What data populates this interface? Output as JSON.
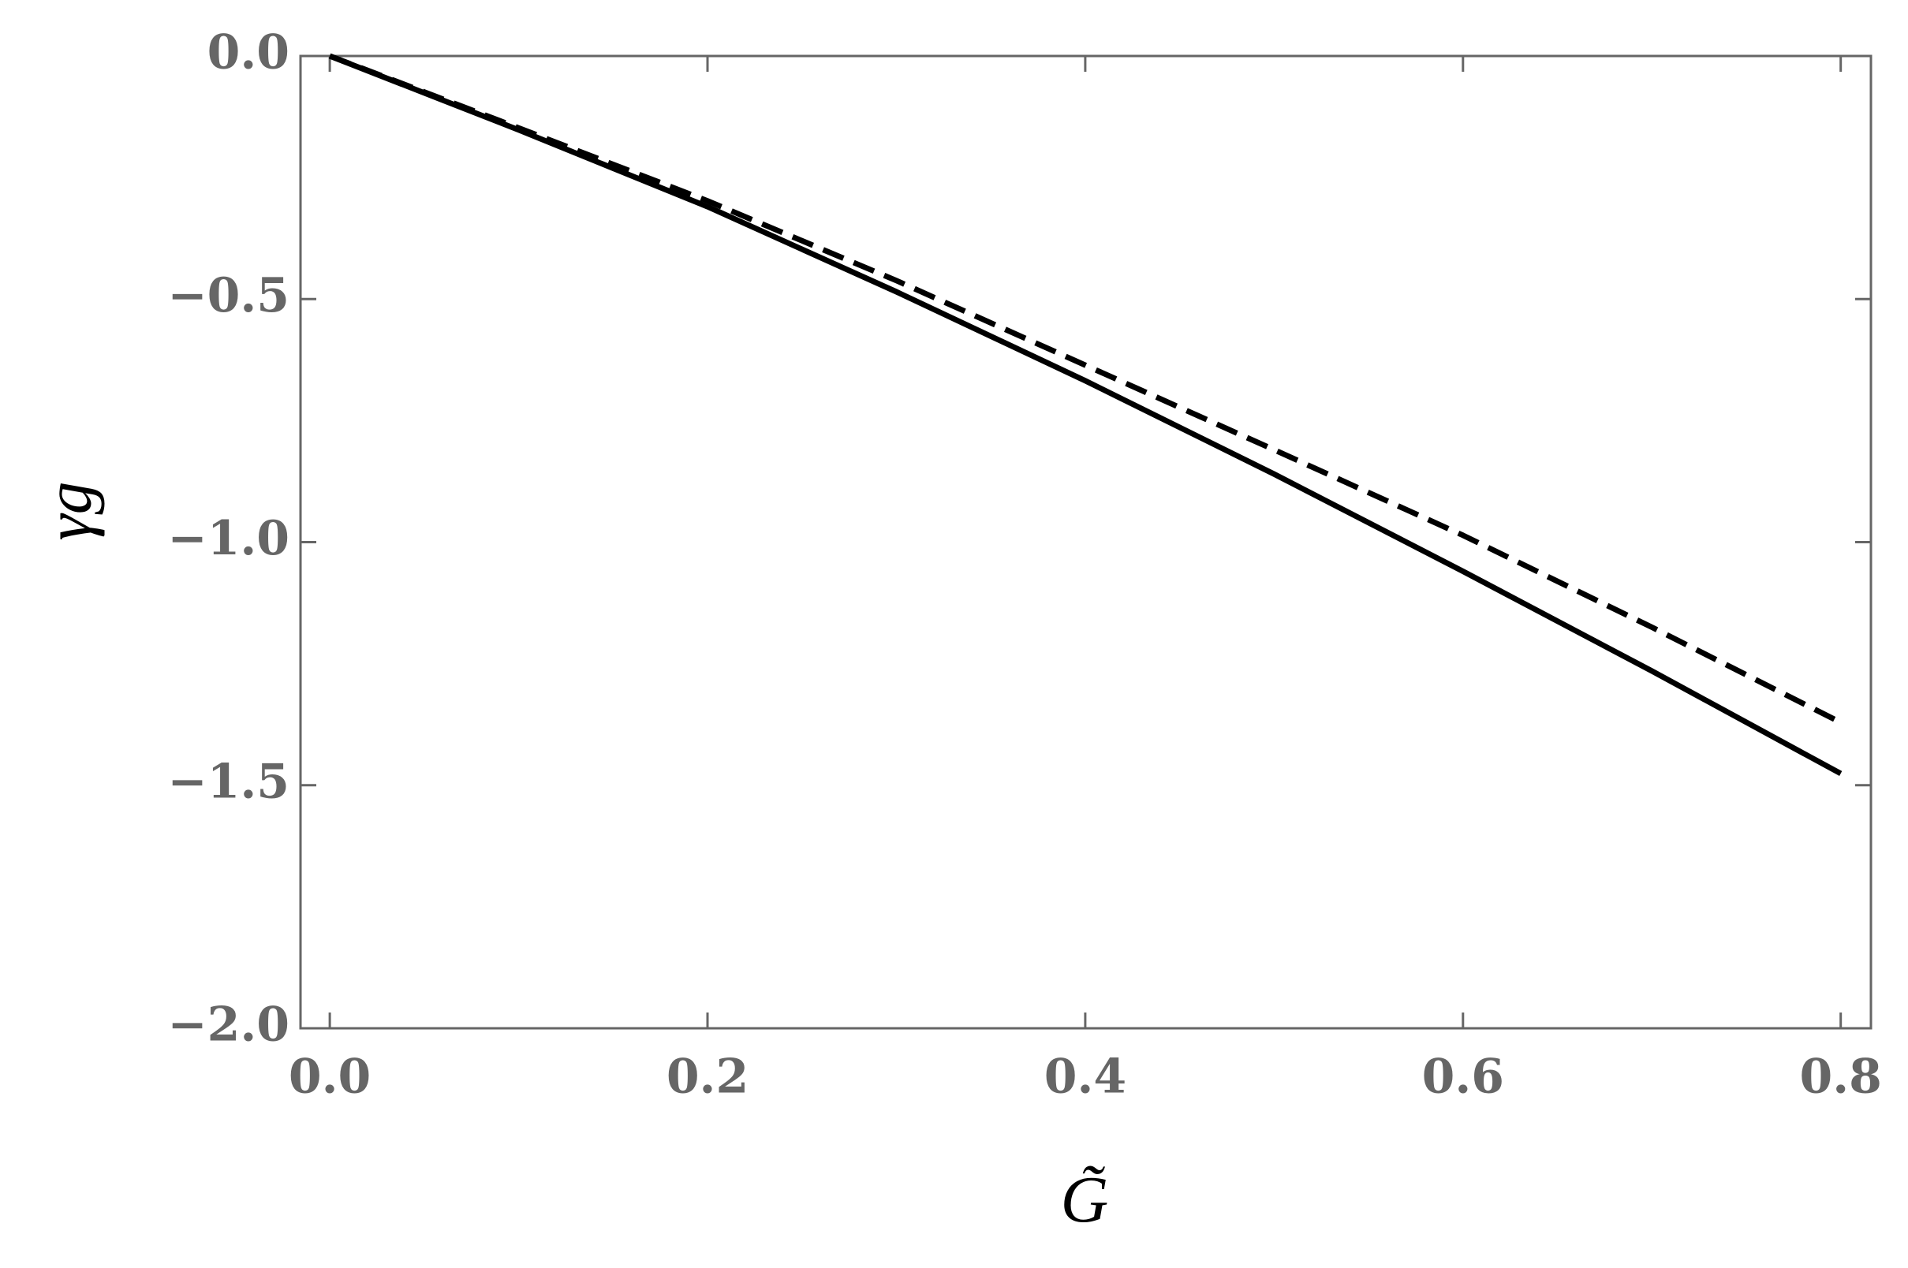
{
  "chart_data": {
    "type": "line",
    "x_label": "G̃",
    "y_label": "γg",
    "x": [
      0,
      0.1,
      0.2,
      0.3,
      0.4,
      0.5,
      0.6,
      0.7,
      0.8
    ],
    "series": [
      {
        "color": "#000000",
        "dash": false,
        "values": [
          0,
          -0.152,
          -0.31,
          -0.485,
          -0.668,
          -0.86,
          -1.06,
          -1.265,
          -1.476
        ]
      },
      {
        "color": "#000000",
        "dash": true,
        "values": [
          0,
          -0.148,
          -0.298,
          -0.462,
          -0.636,
          -0.81,
          -0.986,
          -1.175,
          -1.371
        ]
      }
    ],
    "xlim": [
      -0.0155,
      0.816
    ],
    "ylim": [
      -2.0,
      0.0
    ],
    "xticks": [
      {
        "value": 0,
        "label": "0.0"
      },
      {
        "value": 0.2,
        "label": "0.2"
      },
      {
        "value": 0.4,
        "label": "0.4"
      },
      {
        "value": 0.6,
        "label": "0.6"
      },
      {
        "value": 0.8,
        "label": "0.8"
      }
    ],
    "yticks": [
      {
        "value": 0,
        "label": "0.0"
      },
      {
        "value": -0.5,
        "label": "−0.5"
      },
      {
        "value": -1.0,
        "label": "−1.0"
      },
      {
        "value": -1.5,
        "label": "−1.5"
      },
      {
        "value": -2.0,
        "label": "−2.0"
      }
    ],
    "grid": false
  }
}
